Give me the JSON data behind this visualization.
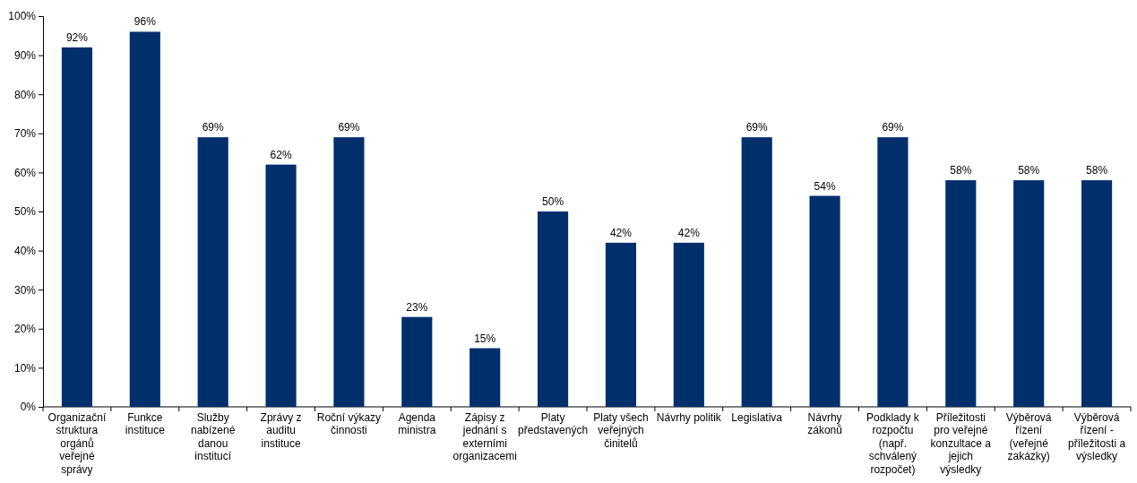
{
  "chart_data": {
    "type": "bar",
    "categories": [
      "Organizační struktura orgánů veřejné správy",
      "Funkce instituce",
      "Služby nabízené danou institucí",
      "Zprávy z auditu instituce",
      "Roční výkazy činnosti",
      "Agenda ministra",
      "Zápisy z jednání s externími organizacemi",
      "Platy představených",
      "Platy všech veřejných činitelů",
      "Návrhy politik",
      "Legislativa",
      "Návrhy zákonů",
      "Podklady k rozpočtu (např. schválený rozpočet)",
      "Příležitosti pro veřejné konzultace a jejich výsledky",
      "Výběrová řízení (veřejné zakázky)",
      "Výběrová řízení - příležitosti a výsledky"
    ],
    "values": [
      92,
      96,
      69,
      62,
      69,
      23,
      15,
      50,
      42,
      42,
      69,
      54,
      69,
      58,
      58,
      58
    ],
    "value_labels": [
      "92%",
      "96%",
      "69%",
      "62%",
      "69%",
      "23%",
      "15%",
      "50%",
      "42%",
      "42%",
      "69%",
      "54%",
      "69%",
      "58%",
      "58%",
      "58%"
    ],
    "color": "#002f6c",
    "ylim": [
      0,
      100
    ],
    "yticks": [
      {
        "value": 0,
        "label": "0%"
      },
      {
        "value": 10,
        "label": "10%"
      },
      {
        "value": 20,
        "label": "20%"
      },
      {
        "value": 30,
        "label": "30%"
      },
      {
        "value": 40,
        "label": "40%"
      },
      {
        "value": 50,
        "label": "50%"
      },
      {
        "value": 60,
        "label": "60%"
      },
      {
        "value": 70,
        "label": "70%"
      },
      {
        "value": 80,
        "label": "80%"
      },
      {
        "value": 90,
        "label": "90%"
      },
      {
        "value": 100,
        "label": "100%"
      }
    ]
  }
}
